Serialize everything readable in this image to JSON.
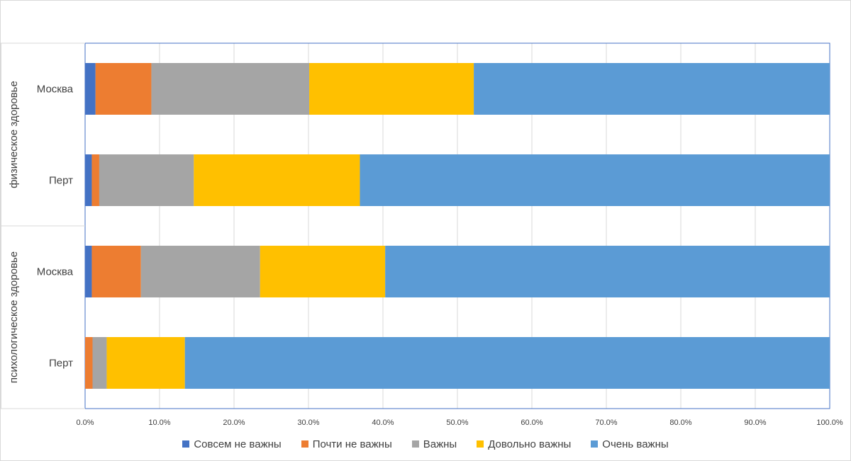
{
  "chart_data": {
    "type": "bar",
    "orientation": "horizontal",
    "stacked": true,
    "percent": true,
    "groups": [
      {
        "label": "физическое здоровье",
        "categories": [
          "Москва",
          "Перт"
        ]
      },
      {
        "label": "психологическое здоровье",
        "categories": [
          "Москва",
          "Перт"
        ]
      }
    ],
    "categories": [
      "Москва",
      "Перт",
      "Москва",
      "Перт"
    ],
    "series": [
      {
        "name": "Совсем не важны",
        "color": "#4472c4",
        "values": [
          1.4,
          0.9,
          0.9,
          0.0
        ]
      },
      {
        "name": "Почти не важны",
        "color": "#ed7d31",
        "values": [
          7.5,
          1.0,
          6.6,
          1.0
        ]
      },
      {
        "name": "Важны",
        "color": "#a5a5a5",
        "values": [
          21.2,
          12.7,
          16.0,
          1.9
        ]
      },
      {
        "name": "Довольно важны",
        "color": "#ffc000",
        "values": [
          22.1,
          22.3,
          16.8,
          10.5
        ]
      },
      {
        "name": "Очень важны",
        "color": "#5b9bd5",
        "values": [
          47.8,
          63.1,
          59.7,
          86.6
        ]
      }
    ],
    "xlim": [
      0,
      100
    ],
    "xticks": [
      "0.0%",
      "10.0%",
      "20.0%",
      "30.0%",
      "40.0%",
      "50.0%",
      "60.0%",
      "70.0%",
      "80.0%",
      "90.0%",
      "100.0%"
    ],
    "grid": true,
    "legend_position": "bottom"
  }
}
